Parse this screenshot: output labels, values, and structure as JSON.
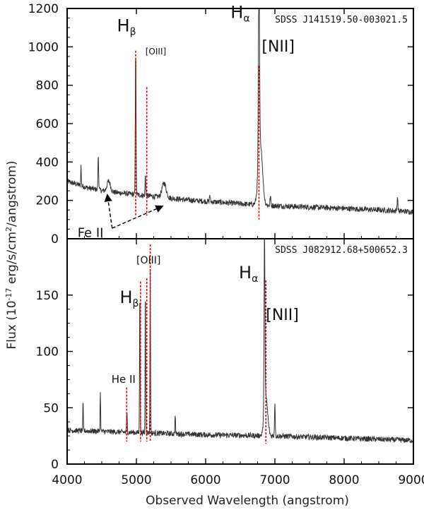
{
  "chart_data": {
    "type": "line",
    "xlabel": "Observed Wavelength (angstrom)",
    "ylabel_parts": [
      "Flux (10",
      "-17",
      " erg/s/cm",
      "2",
      "/angstrom)"
    ],
    "xlim": [
      4000,
      9000
    ],
    "xticks": [
      4000,
      5000,
      6000,
      7000,
      8000,
      9000
    ],
    "panels": [
      {
        "id": "top",
        "object": "SDSS J141519.50-003021.5",
        "ylim": [
          0,
          1200
        ],
        "yticks": [
          0,
          200,
          400,
          600,
          800,
          1000,
          1200
        ],
        "continuum": [
          [
            4000,
            300
          ],
          [
            4300,
            265
          ],
          [
            4600,
            245
          ],
          [
            5000,
            230
          ],
          [
            5400,
            215
          ],
          [
            5800,
            200
          ],
          [
            6200,
            190
          ],
          [
            6600,
            180
          ],
          [
            7000,
            172
          ],
          [
            7500,
            165
          ],
          [
            8000,
            158
          ],
          [
            8500,
            150
          ],
          [
            9000,
            140
          ]
        ],
        "emission_lines": [
          {
            "center": 4200,
            "peak": 380,
            "width": 4
          },
          {
            "center": 4450,
            "peak": 440,
            "width": 5
          },
          {
            "center": 4600,
            "peak": 300,
            "width": 25
          },
          {
            "center": 4990,
            "peak": 1000,
            "width": 5
          },
          {
            "center": 5130,
            "peak": 330,
            "width": 5
          },
          {
            "center": 5400,
            "peak": 290,
            "width": 30
          },
          {
            "center": 6060,
            "peak": 230,
            "width": 5
          },
          {
            "center": 6770,
            "peak": 1180,
            "width": 8
          },
          {
            "center": 6790,
            "peak": 500,
            "width": 30
          },
          {
            "center": 6935,
            "peak": 220,
            "width": 6
          },
          {
            "center": 8770,
            "peak": 220,
            "width": 6
          }
        ],
        "markers": [
          {
            "x": 4990,
            "y_top": 980,
            "y_bottom": 120
          },
          {
            "x": 5150,
            "y_top": 790,
            "y_bottom": 120
          },
          {
            "x": 6770,
            "y_top": 900,
            "y_bottom": 100
          }
        ],
        "labels": [
          {
            "kind": "H",
            "sub": "β",
            "x": 4720,
            "y": 1080,
            "size": 24
          },
          {
            "kind": "text",
            "text": "[OIII]",
            "x": 5130,
            "y": 960,
            "size": 12
          },
          {
            "kind": "H",
            "sub": "α",
            "x": 6360,
            "y": 1150,
            "size": 24
          },
          {
            "kind": "text",
            "text": "[NII]",
            "x": 6810,
            "y": 975,
            "size": 22
          },
          {
            "kind": "text",
            "text": "Fe II",
            "x": 4150,
            "y": 10,
            "size": 18
          }
        ],
        "arrows": [
          {
            "from": [
              4650,
              55
            ],
            "to": [
              4580,
              230
            ]
          },
          {
            "from": [
              4650,
              55
            ],
            "to": [
              5380,
              170
            ]
          }
        ]
      },
      {
        "id": "bottom",
        "object": "SDSS J082912.68+500652.3",
        "ylim": [
          0,
          200
        ],
        "yticks": [
          0,
          50,
          100,
          150
        ],
        "continuum": [
          [
            4000,
            30
          ],
          [
            5000,
            28
          ],
          [
            6000,
            26
          ],
          [
            7000,
            25
          ],
          [
            8000,
            23
          ],
          [
            9000,
            21
          ]
        ],
        "emission_lines": [
          {
            "center": 4000,
            "peak": 75,
            "width": 4
          },
          {
            "center": 4230,
            "peak": 55,
            "width": 4
          },
          {
            "center": 4480,
            "peak": 65,
            "width": 4
          },
          {
            "center": 4863,
            "peak": 45,
            "width": 5
          },
          {
            "center": 5050,
            "peak": 160,
            "width": 4
          },
          {
            "center": 5130,
            "peak": 160,
            "width": 4
          },
          {
            "center": 5200,
            "peak": 170,
            "width": 4
          },
          {
            "center": 5560,
            "peak": 45,
            "width": 4
          },
          {
            "center": 6850,
            "peak": 190,
            "width": 6
          },
          {
            "center": 6870,
            "peak": 60,
            "width": 25
          },
          {
            "center": 7000,
            "peak": 55,
            "width": 5
          }
        ],
        "markers": [
          {
            "x": 4860,
            "y_top": 68,
            "y_bottom": 20
          },
          {
            "x": 5060,
            "y_top": 162,
            "y_bottom": 20
          },
          {
            "x": 5150,
            "y_top": 165,
            "y_bottom": 20
          },
          {
            "x": 5200,
            "y_top": 195,
            "y_bottom": 20
          },
          {
            "x": 6870,
            "y_top": 163,
            "y_bottom": 18
          }
        ],
        "labels": [
          {
            "kind": "text",
            "text": "He II",
            "x": 4640,
            "y": 72,
            "size": 15
          },
          {
            "kind": "H",
            "sub": "β",
            "x": 4760,
            "y": 143,
            "size": 24
          },
          {
            "kind": "text",
            "text": "[OIII]",
            "x": 5000,
            "y": 178,
            "size": 14
          },
          {
            "kind": "H",
            "sub": "α",
            "x": 6480,
            "y": 165,
            "size": 24
          },
          {
            "kind": "text",
            "text": "[NII]",
            "x": 6870,
            "y": 128,
            "size": 22
          }
        ],
        "arrows": []
      }
    ]
  }
}
